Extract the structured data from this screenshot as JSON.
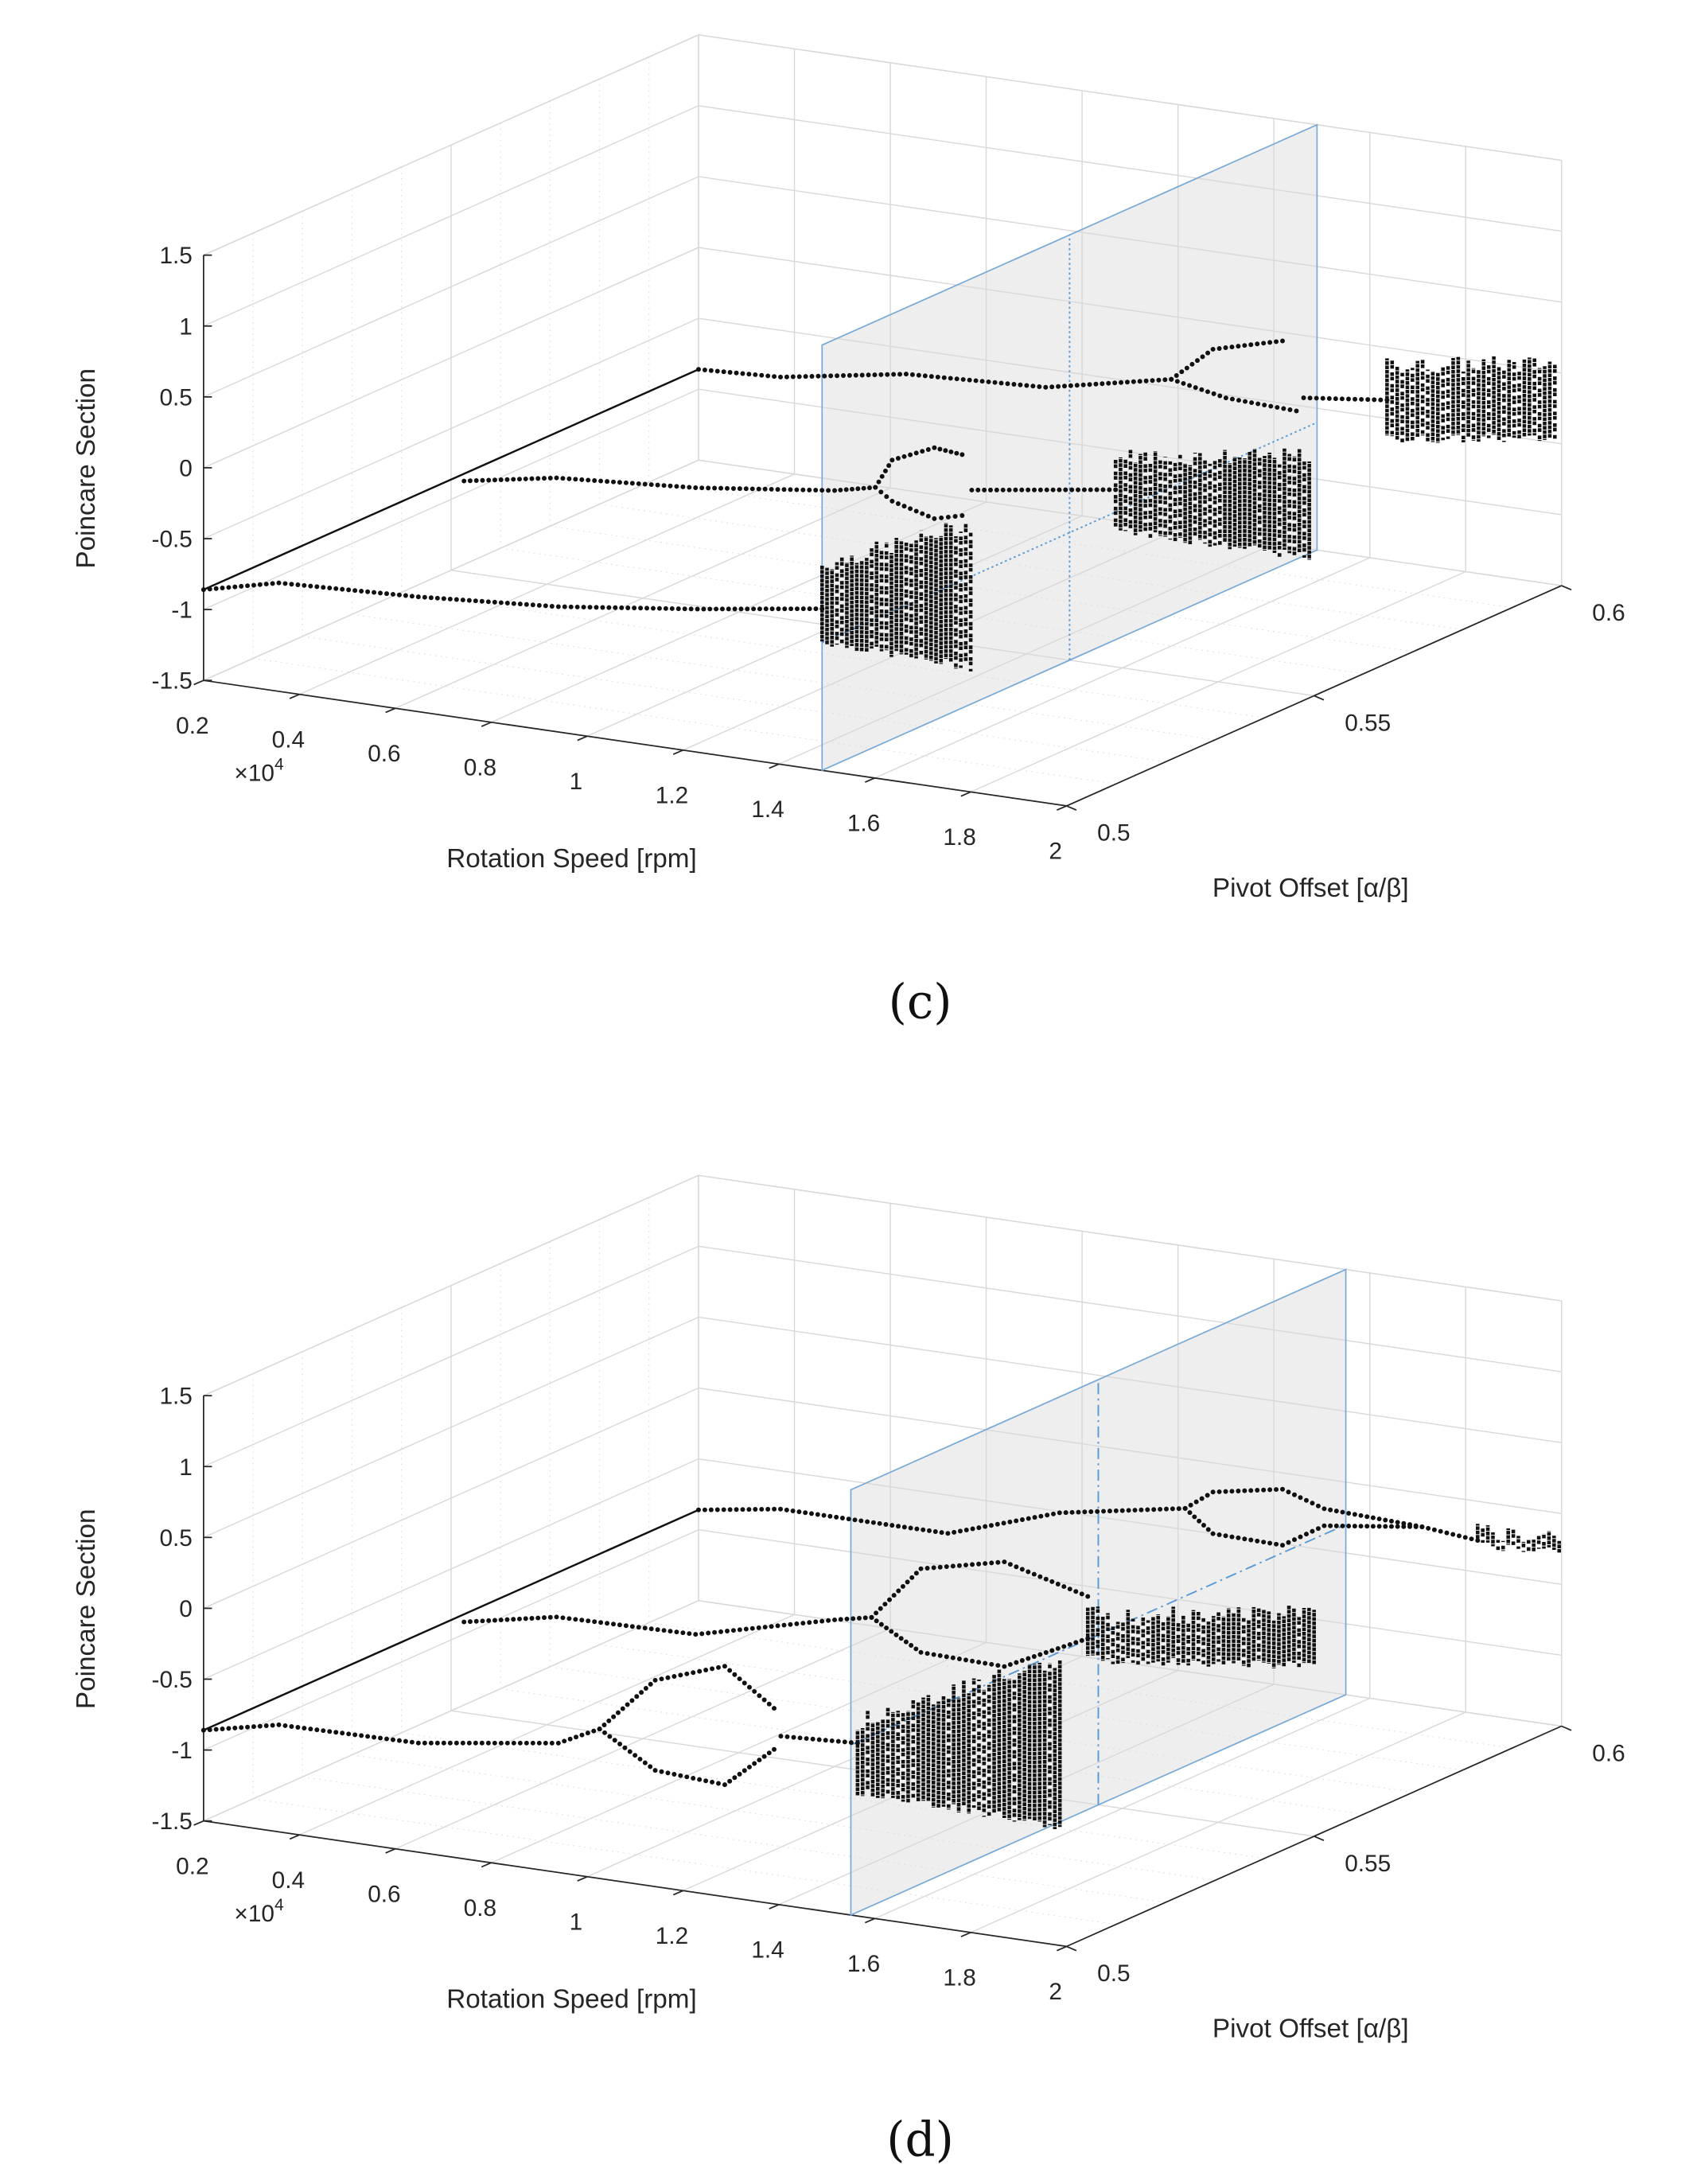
{
  "chart_data": [
    {
      "type": "scatter",
      "title": "(c)",
      "xlabel": "Rotation Speed [rpm]",
      "ylabel": "Pivot Offset [α/β]",
      "zlabel": "Poincare Section",
      "x_multiplier_base": "×10",
      "x_multiplier_power": "4",
      "xlim": [
        0.2,
        2
      ],
      "ylim": [
        0.5,
        0.6
      ],
      "zlim": [
        -1.5,
        1.5
      ],
      "x_ticks": [
        "0.2",
        "0.4",
        "0.6",
        "0.8",
        "1",
        "1.2",
        "1.4",
        "1.6",
        "1.8",
        "2"
      ],
      "y_ticks": [
        "0.5",
        "0.55",
        "0.6"
      ],
      "z_ticks": [
        "-1.5",
        "-1",
        "-0.5",
        "0",
        "0.5",
        "1",
        "1.5"
      ],
      "grid": true,
      "marker_color": "#111111",
      "plane_color": "#d9d9d9",
      "plane_edge_color": "#7aaad6",
      "section_plane": {
        "x": 1.49,
        "line_style": "dotted",
        "guide_pivot": 0.55,
        "guide_z": -0.6
      },
      "initial_line": {
        "x": 0.2,
        "z": -0.86,
        "y_range": [
          0.5,
          0.6
        ]
      },
      "series": [
        {
          "pivot": 0.5,
          "branches": [
            [
              [
                0.2,
                -0.86
              ],
              [
                0.357,
                -0.735
              ],
              [
                0.648,
                -0.69
              ],
              [
                0.94,
                -0.616
              ],
              [
                1.23,
                -0.49
              ],
              [
                1.49,
                -0.36
              ]
            ]
          ],
          "bands": [
            {
              "x": [
                1.49,
                1.8
              ],
              "z_lo": [
                -0.59,
                -0.62
              ],
              "z_hi": [
                -0.05,
                0.39
              ]
            }
          ]
        },
        {
          "pivot": 0.55,
          "branches": [
            [
              [
                0.227,
                -0.857
              ],
              [
                0.42,
                -0.74
              ],
              [
                0.71,
                -0.667
              ],
              [
                1.0,
                -0.544
              ],
              [
                1.085,
                -0.48
              ]
            ],
            [
              [
                1.085,
                -0.48
              ],
              [
                1.12,
                -0.27
              ],
              [
                1.208,
                -0.14
              ],
              [
                1.266,
                -0.16
              ]
            ],
            [
              [
                1.085,
                -0.48
              ],
              [
                1.12,
                -0.56
              ],
              [
                1.208,
                -0.64
              ],
              [
                1.266,
                -0.59
              ]
            ],
            [
              [
                1.286,
                -0.4
              ],
              [
                1.586,
                -0.25
              ]
            ]
          ],
          "bands": [
            {
              "x": [
                1.586,
                1.99
              ],
              "z_lo": [
                -0.53,
                -0.53
              ],
              "z_hi": [
                -0.017,
                0.18
              ]
            }
          ]
        },
        {
          "pivot": 0.6,
          "branches": [
            [
              [
                0.2,
                -0.86
              ],
              [
                0.371,
                -0.83
              ],
              [
                0.633,
                -0.68
              ],
              [
                0.924,
                -0.63
              ],
              [
                1.186,
                -0.445
              ]
            ],
            [
              [
                1.186,
                -0.445
              ],
              [
                1.273,
                -0.19
              ],
              [
                1.418,
                -0.06
              ]
            ],
            [
              [
                1.186,
                -0.445
              ],
              [
                1.3,
                -0.52
              ],
              [
                1.447,
                -0.54
              ]
            ],
            [
              [
                1.462,
                -0.44
              ],
              [
                1.636,
                -0.37
              ]
            ]
          ],
          "bands": [
            {
              "x": [
                1.636,
                1.986
              ],
              "z_lo": [
                -0.645,
                -0.47
              ],
              "z_hi": [
                -0.125,
                0.06
              ]
            }
          ]
        }
      ]
    },
    {
      "type": "scatter",
      "title": "(d)",
      "xlabel": "Rotation Speed [rpm]",
      "ylabel": "Pivot Offset [α/β]",
      "zlabel": "Poincare Section",
      "x_multiplier_base": "×10",
      "x_multiplier_power": "4",
      "xlim": [
        0.2,
        2
      ],
      "ylim": [
        0.5,
        0.6
      ],
      "zlim": [
        -1.5,
        1.5
      ],
      "x_ticks": [
        "0.2",
        "0.4",
        "0.6",
        "0.8",
        "1",
        "1.2",
        "1.4",
        "1.6",
        "1.8",
        "2"
      ],
      "y_ticks": [
        "0.5",
        "0.55",
        "0.6"
      ],
      "z_ticks": [
        "-1.5",
        "-1",
        "-0.5",
        "0",
        "0.5",
        "1",
        "1.5"
      ],
      "grid": true,
      "marker_color": "#111111",
      "plane_color": "#d9d9d9",
      "plane_edge_color": "#7aaad6",
      "section_plane": {
        "x": 1.55,
        "line_style": "dash-dot",
        "guide_pivot": 0.55,
        "guide_z": -0.3
      },
      "initial_line": {
        "x": 0.2,
        "z": -0.86,
        "y_range": [
          0.5,
          0.6
        ]
      },
      "series": [
        {
          "pivot": 0.5,
          "branches": [
            [
              [
                0.2,
                -0.86
              ],
              [
                0.357,
                -0.745
              ],
              [
                0.648,
                -0.73
              ],
              [
                0.94,
                -0.587
              ],
              [
                1.026,
                -0.445
              ]
            ],
            [
              [
                1.026,
                -0.445
              ],
              [
                1.142,
                -0.044
              ],
              [
                1.287,
                0.126
              ],
              [
                1.39,
                -0.12
              ]
            ],
            [
              [
                1.026,
                -0.445
              ],
              [
                1.142,
                -0.68
              ],
              [
                1.287,
                -0.71
              ],
              [
                1.39,
                -0.41
              ]
            ],
            [
              [
                1.404,
                -0.31
              ],
              [
                1.564,
                -0.28
              ]
            ]
          ],
          "bands": [
            {
              "x": [
                1.564,
                1.986
              ],
              "z_lo": [
                -0.62,
                -0.66
              ],
              "z_hi": [
                -0.13,
                0.52
              ]
            }
          ]
        },
        {
          "pivot": 0.55,
          "branches": [
            [
              [
                0.227,
                -0.86
              ],
              [
                0.42,
                -0.73
              ],
              [
                0.71,
                -0.71
              ],
              [
                1.0,
                -0.465
              ],
              [
                1.077,
                -0.41
              ]
            ],
            [
              [
                1.077,
                -0.41
              ],
              [
                1.18,
                -0.016
              ],
              [
                1.354,
                0.118
              ],
              [
                1.528,
                -0.04
              ]
            ],
            [
              [
                1.077,
                -0.41
              ],
              [
                1.18,
                -0.606
              ],
              [
                1.354,
                -0.62
              ],
              [
                1.528,
                -0.337
              ]
            ]
          ],
          "bands": [
            {
              "x": [
                1.528,
                2.0
              ],
              "z_lo": [
                -0.484,
                -0.3
              ],
              "z_hi": [
                -0.17,
                0.07
              ]
            }
          ]
        },
        {
          "pivot": 0.6,
          "branches": [
            [
              [
                0.2,
                -0.86
              ],
              [
                0.371,
                -0.77
              ],
              [
                0.72,
                -0.77
              ],
              [
                0.953,
                -0.51
              ],
              [
                1.215,
                -0.35
              ]
            ],
            [
              [
                1.215,
                -0.35
              ],
              [
                1.273,
                -0.206
              ],
              [
                1.418,
                -0.115
              ],
              [
                1.505,
                -0.21
              ],
              [
                1.709,
                -0.237
              ]
            ],
            [
              [
                1.215,
                -0.35
              ],
              [
                1.273,
                -0.5
              ],
              [
                1.418,
                -0.51
              ],
              [
                1.505,
                -0.33
              ],
              [
                1.709,
                -0.237
              ]
            ],
            [
              [
                1.709,
                -0.237
              ],
              [
                1.825,
                -0.276
              ]
            ]
          ],
          "bands": [
            {
              "x": [
                1.825,
                1.995
              ],
              "z_lo": [
                -0.31,
                -0.264
              ],
              "z_hi": [
                -0.21,
                -0.166
              ]
            }
          ]
        }
      ]
    }
  ]
}
